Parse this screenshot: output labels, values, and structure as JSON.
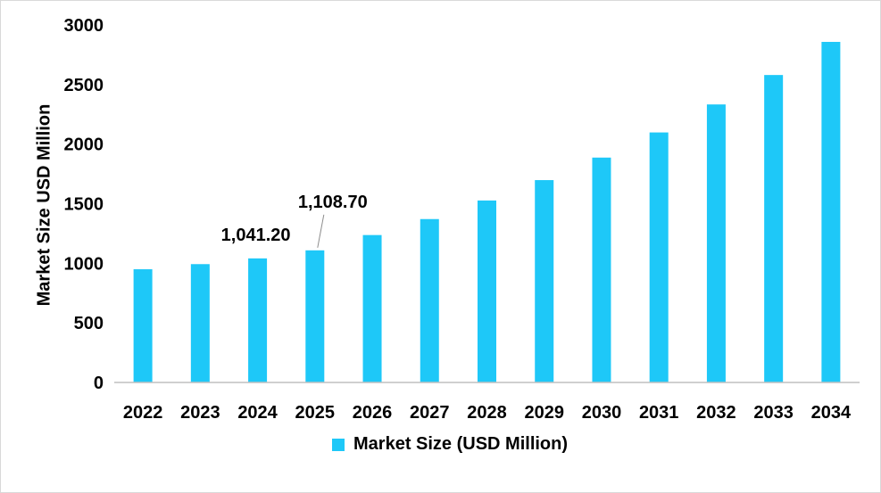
{
  "chart_data": {
    "type": "bar",
    "title": "",
    "xlabel": "",
    "ylabel": "Market Size USD Million",
    "ylim": [
      0,
      3000
    ],
    "yticks": [
      0,
      500,
      1000,
      1500,
      2000,
      2500,
      3000
    ],
    "categories": [
      "2022",
      "2023",
      "2024",
      "2025",
      "2026",
      "2027",
      "2028",
      "2029",
      "2030",
      "2031",
      "2032",
      "2033",
      "2034"
    ],
    "series": [
      {
        "name": "Market Size (USD Million)",
        "color": "#1ec8f8",
        "values": [
          950,
          993,
          1041.2,
          1108.7,
          1237,
          1371,
          1527,
          1698,
          1887,
          2098,
          2333,
          2580,
          2858
        ]
      }
    ],
    "data_labels": [
      {
        "category": "2024",
        "text": "1,041.20"
      },
      {
        "category": "2025",
        "text": "1,108.70"
      }
    ],
    "legend": {
      "position": "bottom",
      "label": "Market Size (USD Million)"
    },
    "grid": false
  }
}
